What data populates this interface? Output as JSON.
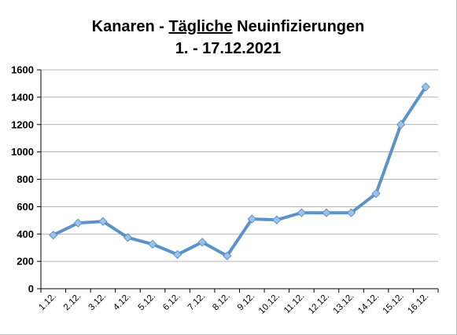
{
  "chart_data": {
    "type": "line",
    "title": {
      "part1": "Kanaren - ",
      "part2_underlined": "Tägliche",
      "part3": " Neuinfizierungen"
    },
    "subtitle": "1. - 17.12.2021",
    "categories": [
      "1.12.",
      "2.12.",
      "3.12.",
      "4.12.",
      "5.12.",
      "6.12.",
      "7.12.",
      "8.12.",
      "9.12.",
      "10.12.",
      "11.12.",
      "12.12.",
      "13.12.",
      "14.12.",
      "15.12.",
      "16.12."
    ],
    "series": [
      {
        "values": [
          392,
          480,
          492,
          374,
          325,
          250,
          340,
          240,
          510,
          503,
          555,
          555,
          555,
          695,
          1200,
          1475
        ],
        "color": "#5b93c8",
        "marker_color": "#9dc3e8"
      }
    ],
    "yticks": [
      0,
      200,
      400,
      600,
      800,
      1000,
      1200,
      1400,
      1600
    ],
    "ylim": [
      0,
      1600
    ],
    "xlabel": "",
    "ylabel": "",
    "grid": true,
    "legend": "none"
  }
}
